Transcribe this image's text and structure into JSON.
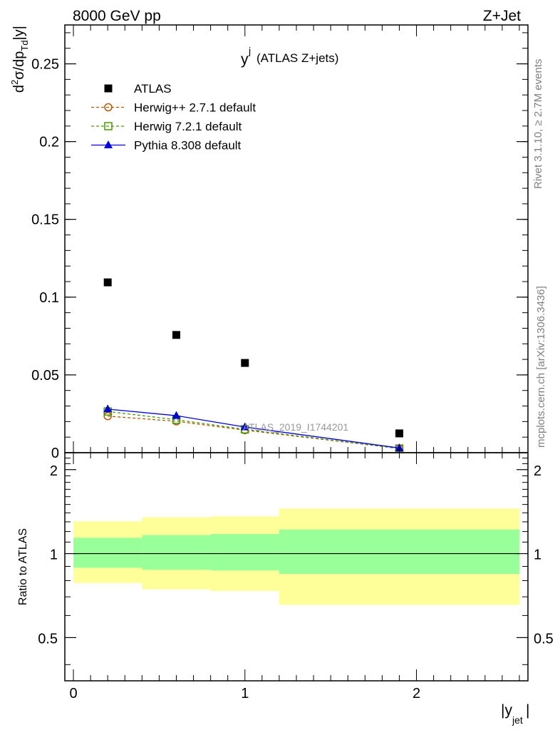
{
  "header": {
    "left": "8000 GeV pp",
    "right": "Z+Jet"
  },
  "title": {
    "main": "y",
    "sup": "j",
    "sub": "(ATLAS Z+jets)"
  },
  "side_labels": {
    "rivet": "Rivet 3.1.10, ≥ 2.7M events",
    "mcplots": "mcplots.cern.ch [arXiv:1306.3436]"
  },
  "watermark": "ATLAS_2019_I1744201",
  "axes": {
    "y_main": "d²σ/dp_Td|y|",
    "y_ratio": "Ratio to ATLAS",
    "x": "|y_jet|"
  },
  "colors": {
    "atlas": "#000000",
    "herwigpp": "#b35900",
    "herwig7": "#4d9900",
    "pythia": "#0000dd",
    "band_outer": "#ffff99",
    "band_inner": "#99ff99"
  },
  "chart_data": [
    {
      "type": "scatter",
      "panel": "main",
      "x_ticks": [
        "0",
        "1",
        "2"
      ],
      "y_ticks": [
        "0",
        "0.05",
        "0.1",
        "0.15",
        "0.2",
        "0.25"
      ],
      "xlim": [
        -0.05,
        2.65
      ],
      "ylim": [
        0,
        0.275
      ],
      "legend_position": "top-left",
      "series": [
        {
          "name": "ATLAS",
          "marker": "square",
          "x": [
            0.2,
            0.6,
            1.0,
            1.9
          ],
          "values": [
            0.1095,
            0.0757,
            0.0577,
            0.0124
          ]
        },
        {
          "name": "Herwig++ 2.7.1 default",
          "marker": "circle",
          "line": "dashed",
          "x": [
            0.2,
            0.6,
            1.0,
            1.9
          ],
          "values": [
            0.0235,
            0.0202,
            0.0145,
            0.0027
          ]
        },
        {
          "name": "Herwig 7.2.1 default",
          "marker": "open-square",
          "line": "dashed",
          "x": [
            0.2,
            0.6,
            1.0,
            1.9
          ],
          "values": [
            0.0265,
            0.0212,
            0.015,
            0.0027
          ]
        },
        {
          "name": "Pythia 8.308 default",
          "marker": "triangle",
          "line": "solid",
          "x": [
            0.2,
            0.6,
            1.0,
            1.9
          ],
          "values": [
            0.028,
            0.0238,
            0.0165,
            0.003
          ]
        }
      ]
    },
    {
      "type": "area",
      "panel": "ratio",
      "y_ticks": [
        "0.5",
        "1",
        "2"
      ],
      "ylim": [
        0.35,
        2.3
      ],
      "reference_line": 1,
      "bins": [
        [
          0.0,
          0.4
        ],
        [
          0.4,
          0.8
        ],
        [
          0.8,
          1.2
        ],
        [
          1.2,
          2.6
        ]
      ],
      "band_inner": [
        [
          0.89,
          1.14
        ],
        [
          0.875,
          1.165
        ],
        [
          0.87,
          1.175
        ],
        [
          0.845,
          1.22
        ]
      ],
      "band_outer": [
        [
          0.785,
          1.305
        ],
        [
          0.745,
          1.35
        ],
        [
          0.735,
          1.36
        ],
        [
          0.655,
          1.45
        ]
      ]
    }
  ]
}
